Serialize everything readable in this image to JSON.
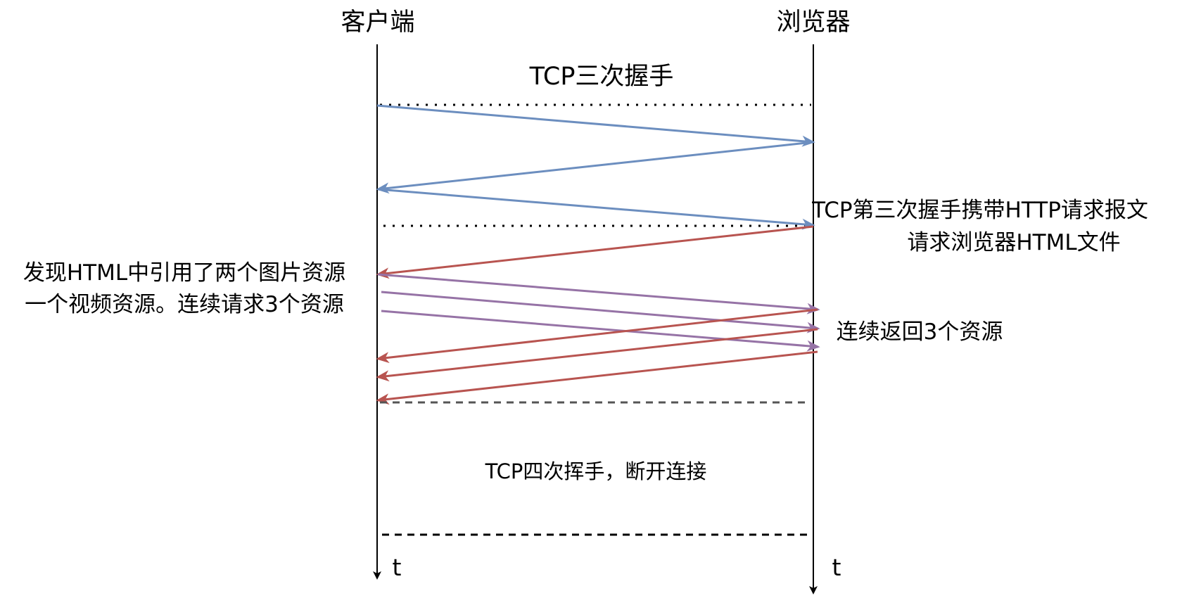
{
  "participants": {
    "left": "客户端",
    "right": "浏览器",
    "left_time_label": "t",
    "right_time_label": "t"
  },
  "sections": {
    "handshake_title": "TCP三次握手",
    "handshake_http_note_line1": "TCP第三次握手携带HTTP请求报文",
    "handshake_http_note_line2": "请求浏览器HTML文件",
    "discover_note_line1": "发现HTML中引用了两个图片资源",
    "discover_note_line2": "一个视频资源。连续请求3个资源",
    "return_note": "连续返回3个资源",
    "teardown_title": "TCP四次挥手，断开连接"
  },
  "colors": {
    "lifeline": "#000000",
    "handshake_arrow": "#6c8ebf",
    "response_arrow": "#b85450",
    "request_arrow": "#9673a6",
    "separator": "#000000"
  },
  "messages": [
    {
      "id": "syn",
      "from": "left",
      "to": "right",
      "color_key": "handshake_arrow"
    },
    {
      "id": "syn-ack",
      "from": "right",
      "to": "left",
      "color_key": "handshake_arrow"
    },
    {
      "id": "ack-http-request",
      "from": "left",
      "to": "right",
      "color_key": "handshake_arrow"
    },
    {
      "id": "html-response",
      "from": "right",
      "to": "left",
      "color_key": "response_arrow"
    },
    {
      "id": "resource-request-1",
      "from": "left",
      "to": "right",
      "color_key": "request_arrow"
    },
    {
      "id": "resource-request-2",
      "from": "left",
      "to": "right",
      "color_key": "request_arrow"
    },
    {
      "id": "resource-request-3",
      "from": "left",
      "to": "right",
      "color_key": "request_arrow"
    },
    {
      "id": "resource-response-1",
      "from": "right",
      "to": "left",
      "color_key": "response_arrow"
    },
    {
      "id": "resource-response-2",
      "from": "right",
      "to": "left",
      "color_key": "response_arrow"
    },
    {
      "id": "resource-response-3",
      "from": "right",
      "to": "left",
      "color_key": "response_arrow"
    }
  ]
}
